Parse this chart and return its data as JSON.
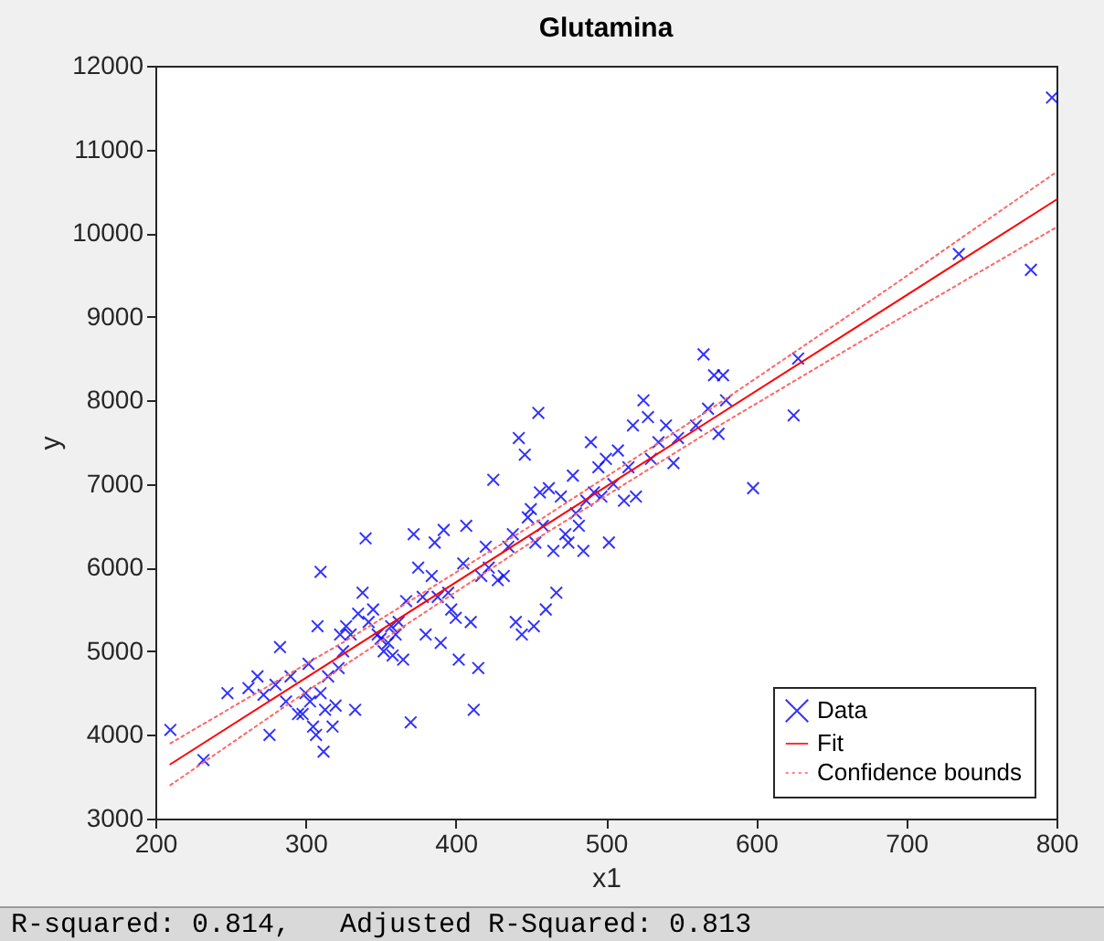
{
  "chart_data": {
    "type": "scatter",
    "title": "Glutamina",
    "xlabel": "x1",
    "ylabel": "y",
    "xlim": [
      200,
      800
    ],
    "xticks": [
      200,
      300,
      400,
      500,
      600,
      700,
      800
    ],
    "ylim": [
      3000,
      12000
    ],
    "yticks": [
      3000,
      4000,
      5000,
      6000,
      7000,
      8000,
      9000,
      10000,
      11000,
      12000
    ],
    "grid": false,
    "legend": "bottom right",
    "annotations": [
      "R-squared: 0.814,   Adjusted R-Squared: 0.813"
    ],
    "series": [
      {
        "name": "Data",
        "color": "#0000ff",
        "marker": "cross",
        "x": [
          210,
          232,
          248,
          262,
          268,
          272,
          276,
          280,
          283,
          287,
          290,
          295,
          298,
          300,
          302,
          303,
          305,
          307,
          308,
          310,
          310,
          312,
          313,
          315,
          318,
          320,
          322,
          323,
          325,
          327,
          330,
          333,
          335,
          338,
          340,
          342,
          345,
          348,
          350,
          352,
          355,
          357,
          358,
          360,
          362,
          365,
          367,
          370,
          372,
          375,
          378,
          380,
          384,
          386,
          388,
          390,
          392,
          395,
          397,
          400,
          402,
          405,
          407,
          410,
          412,
          415,
          417,
          420,
          422,
          425,
          428,
          432,
          435,
          438,
          440,
          442,
          444,
          446,
          448,
          450,
          452,
          453,
          455,
          456,
          458,
          460,
          462,
          465,
          467,
          470,
          473,
          475,
          478,
          480,
          482,
          485,
          487,
          490,
          492,
          495,
          497,
          500,
          502,
          505,
          508,
          512,
          515,
          518,
          520,
          525,
          528,
          530,
          535,
          540,
          545,
          548,
          560,
          565,
          568,
          572,
          575,
          578,
          580,
          598,
          625,
          628,
          735,
          783,
          797
        ],
        "values": [
          4060,
          3700,
          4500,
          4560,
          4700,
          4480,
          4000,
          4600,
          5050,
          4400,
          4700,
          4250,
          4250,
          4500,
          4850,
          4400,
          4100,
          4000,
          5300,
          4500,
          5950,
          3800,
          4300,
          4700,
          4100,
          4350,
          4800,
          5200,
          5000,
          5300,
          5200,
          4300,
          5450,
          5700,
          6350,
          5350,
          5500,
          5200,
          5150,
          5000,
          5100,
          5300,
          4950,
          5200,
          5350,
          4900,
          5600,
          4150,
          6400,
          6000,
          5650,
          5200,
          5900,
          6300,
          5650,
          5100,
          6450,
          5700,
          5500,
          5400,
          4900,
          6050,
          6500,
          5350,
          4300,
          4800,
          5900,
          6250,
          6000,
          7050,
          5850,
          5900,
          6250,
          6400,
          5350,
          7550,
          5200,
          7350,
          6600,
          6700,
          5300,
          6300,
          7850,
          6900,
          6500,
          5500,
          6950,
          6200,
          5700,
          6850,
          6400,
          6300,
          7100,
          6650,
          6500,
          6200,
          6800,
          7500,
          6900,
          7200,
          6850,
          7300,
          6300,
          7000,
          7400,
          6800,
          7200,
          7700,
          6850,
          8000,
          7800,
          7300,
          7500,
          7700,
          7250,
          7550,
          7700,
          8550,
          7900,
          8300,
          7600,
          8300,
          8000,
          6950,
          7820,
          8500,
          9750,
          9560,
          11620
        ]
      },
      {
        "name": "Fit",
        "color": "#ff0000",
        "type": "line",
        "line_style": "solid",
        "x": [
          210,
          800
        ],
        "values": [
          3650,
          10400
        ]
      },
      {
        "name": "Confidence bounds",
        "color": "#ff6666",
        "type": "line",
        "line_style": "dotted",
        "x": [
          210,
          330,
          450,
          570,
          690,
          800
        ],
        "values": [
          3900,
          5160,
          6500,
          7900,
          9360,
          10730
        ]
      },
      {
        "color": "#ff6666",
        "type": "line",
        "line_style": "dotted",
        "x": [
          210,
          330,
          450,
          570,
          690,
          800
        ],
        "values": [
          3400,
          4880,
          6300,
          7640,
          8920,
          10070
        ]
      }
    ]
  }
}
